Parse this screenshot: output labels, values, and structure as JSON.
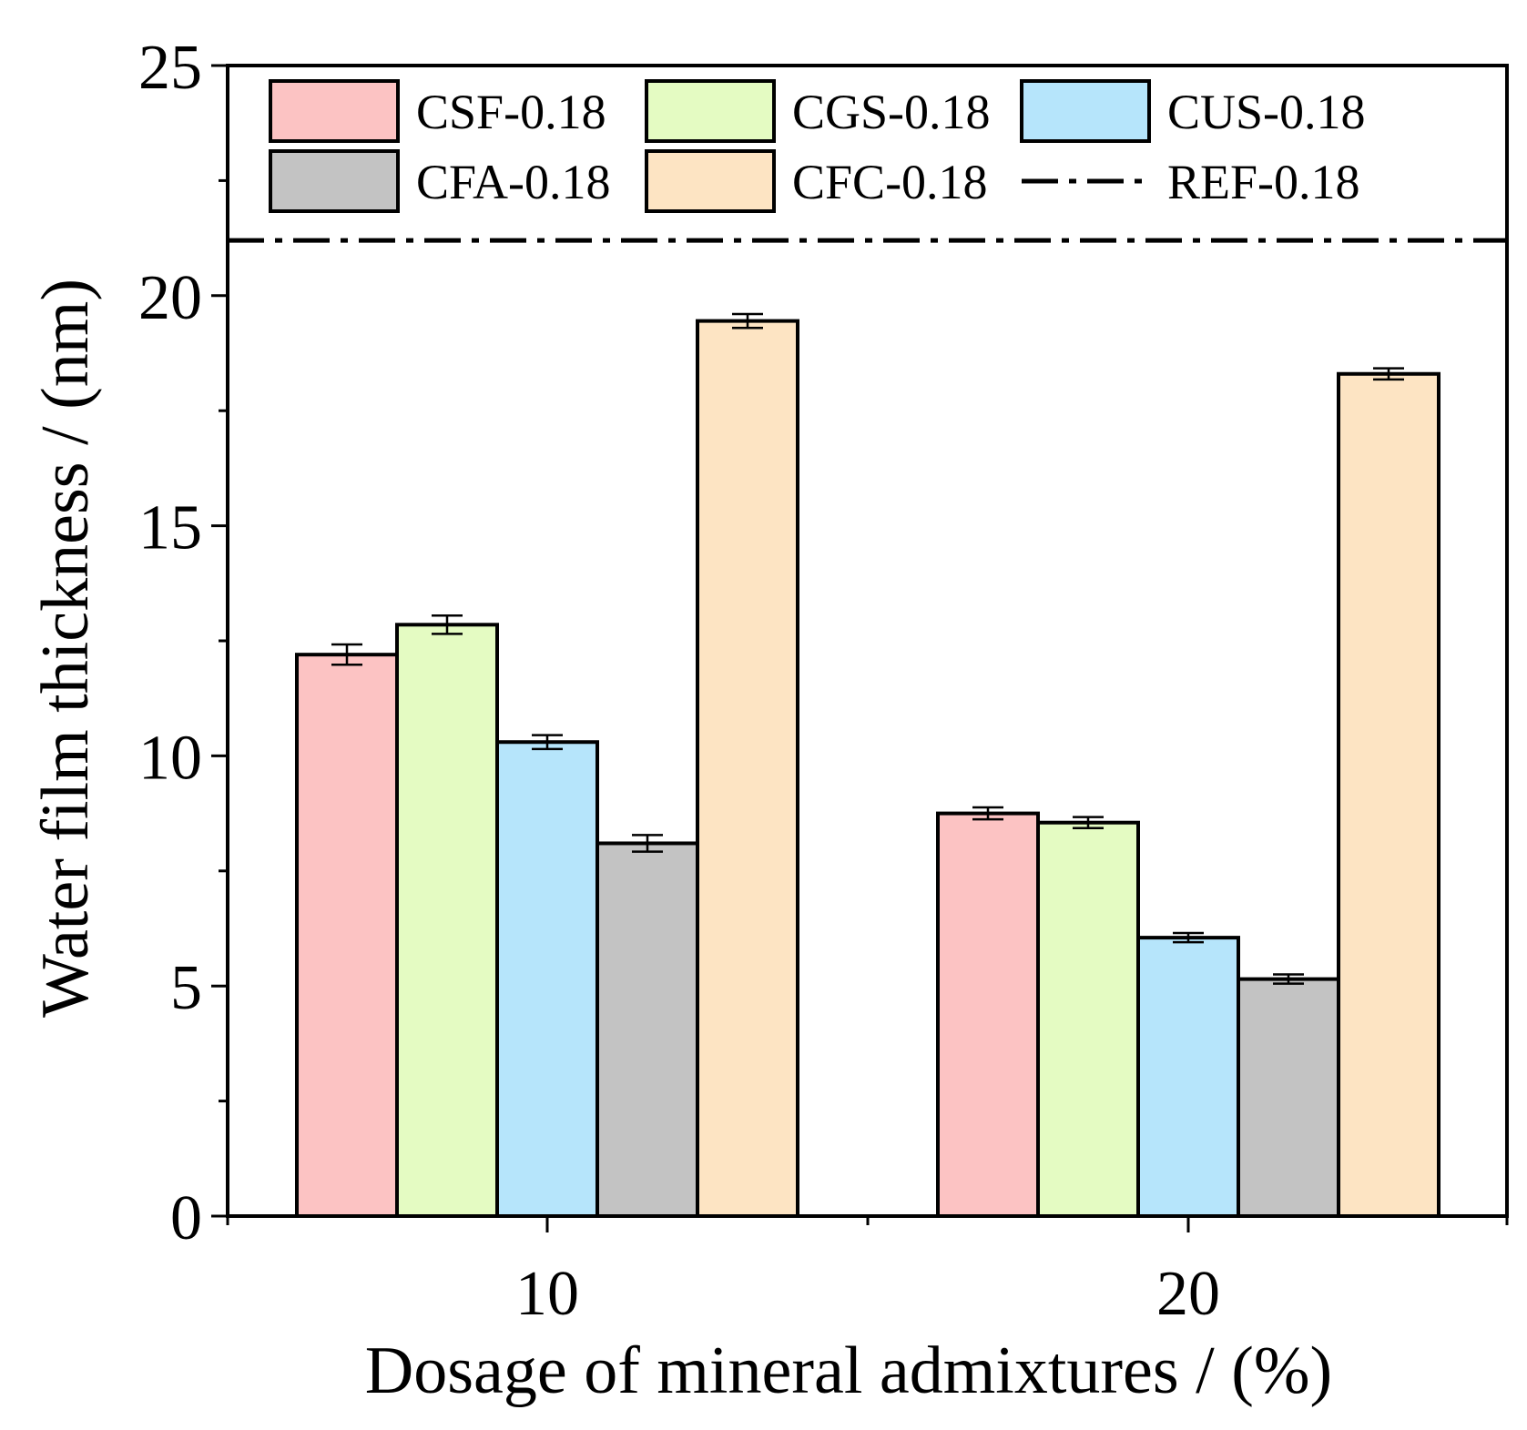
{
  "chart_data": {
    "type": "bar",
    "title": "",
    "xlabel": "Dosage of mineral admixtures / (%)",
    "ylabel": "Water film thickness / (nm)",
    "categories": [
      "10",
      "20"
    ],
    "ylim": [
      0,
      25
    ],
    "yticks": [
      "0",
      "5",
      "10",
      "15",
      "20",
      "25"
    ],
    "grid": false,
    "legend_position": "top",
    "series": [
      {
        "name": "CSF-0.18",
        "color": "#fcc3c3",
        "values": [
          12.2,
          8.75
        ],
        "errors": [
          0.22,
          0.13
        ]
      },
      {
        "name": "CGS-0.18",
        "color": "#e4fbc2",
        "values": [
          12.85,
          8.55
        ],
        "errors": [
          0.2,
          0.12
        ]
      },
      {
        "name": "CUS-0.18",
        "color": "#b6e5fb",
        "values": [
          10.3,
          6.05
        ],
        "errors": [
          0.15,
          0.1
        ]
      },
      {
        "name": "CFA-0.18",
        "color": "#c3c3c3",
        "values": [
          8.1,
          5.15
        ],
        "errors": [
          0.18,
          0.1
        ]
      },
      {
        "name": "CFC-0.18",
        "color": "#fde4c3",
        "values": [
          19.45,
          18.3
        ],
        "errors": [
          0.15,
          0.12
        ]
      }
    ],
    "reference_line": {
      "name": "REF-0.18",
      "value": 21.2,
      "style": "dash-dot"
    }
  }
}
